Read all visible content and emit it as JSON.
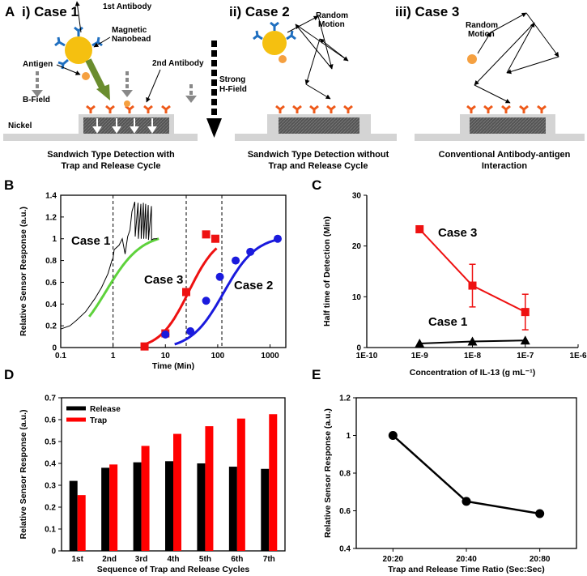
{
  "panel_a": {
    "letter": "A",
    "case1_title": "i) Case 1",
    "case2_title": "ii) Case 2",
    "case3_title": "iii) Case 3",
    "lbl_first_antibody": "1st Antibody",
    "lbl_magnetic": "Magnetic",
    "lbl_nanobead": "Nanobead",
    "lbl_antigen": "Antigen",
    "lbl_second_antibody": "2nd Antibody",
    "lbl_bfield": "B-Field",
    "lbl_nickel": "Nickel",
    "lbl_strong": "Strong",
    "lbl_hfield": "H-Field",
    "lbl_random": "Random",
    "lbl_motion": "Motion",
    "cap1_line1": "Sandwich Type Detection with",
    "cap1_line2": "Trap and Release Cycle",
    "cap2_line1": "Sandwich Type Detection without",
    "cap2_line2": "Trap and Release Cycle",
    "cap3_line1": "Conventional Antibody-antigen",
    "cap3_line2": "Interaction"
  },
  "chart_data": [
    {
      "panel": "B",
      "type": "scatter",
      "xscale": "log",
      "xlabel": "Time (Min)",
      "ylabel": "Relative Sensor Response (a.u.)",
      "xlim": [
        0.1,
        2000
      ],
      "ylim": [
        0,
        1.4
      ],
      "xticks": [
        "0.1",
        "1",
        "10",
        "100",
        "1000"
      ],
      "yticks": [
        "0",
        "0.2",
        "0.4",
        "0.6",
        "0.8",
        "1",
        "1.2",
        "1.4"
      ],
      "vlines": [
        1,
        25,
        120
      ],
      "annotations": [
        "Case 1",
        "Case 3",
        "Case 2"
      ],
      "series": [
        {
          "name": "Case 3 points",
          "color": "#ee1111",
          "marker": "square",
          "x": [
            4,
            10,
            25,
            60,
            90
          ],
          "y": [
            0.01,
            0.13,
            0.51,
            1.04,
            1.0
          ]
        },
        {
          "name": "Case 2 points",
          "color": "#1a1add",
          "marker": "circle",
          "x": [
            10,
            30,
            60,
            110,
            220,
            420,
            1400
          ],
          "y": [
            0.12,
            0.15,
            0.43,
            0.65,
            0.8,
            0.88,
            1.0
          ]
        }
      ]
    },
    {
      "panel": "C",
      "type": "line",
      "xscale": "log",
      "xlabel": "Concentration of IL-13 (g mL⁻¹)",
      "ylabel": "Half time of Detection (Min)",
      "xlim": [
        1e-10,
        1e-06
      ],
      "ylim": [
        0,
        30
      ],
      "xticks": [
        "1E-10",
        "1E-9",
        "1E-8",
        "1E-7",
        "1E-6"
      ],
      "yticks": [
        "0",
        "10",
        "20",
        "30"
      ],
      "series": [
        {
          "name": "Case 3",
          "color": "#ee1111",
          "marker": "square",
          "x": [
            1e-09,
            1e-08,
            1e-07
          ],
          "y": [
            23.3,
            12.2,
            7.0
          ],
          "err": [
            0.6,
            4.2,
            3.5
          ]
        },
        {
          "name": "Case 1",
          "color": "#000000",
          "marker": "triangle",
          "x": [
            1e-09,
            1e-08,
            1e-07
          ],
          "y": [
            0.8,
            1.2,
            1.4
          ]
        }
      ]
    },
    {
      "panel": "D",
      "type": "bar",
      "xlabel": "Sequence of Trap and Release Cycles",
      "ylabel": "Relative Sensor Response (a.u.)",
      "ylim": [
        0,
        0.7
      ],
      "yticks": [
        "0",
        "0.1",
        "0.2",
        "0.3",
        "0.4",
        "0.5",
        "0.6",
        "0.7"
      ],
      "categories": [
        "1st",
        "2nd",
        "3rd",
        "4th",
        "5th",
        "6th",
        "7th"
      ],
      "legend": "top-left",
      "series": [
        {
          "name": "Release",
          "color": "#000000",
          "values": [
            0.32,
            0.38,
            0.405,
            0.41,
            0.4,
            0.385,
            0.375
          ]
        },
        {
          "name": "Trap",
          "color": "#ff0000",
          "values": [
            0.255,
            0.395,
            0.48,
            0.535,
            0.57,
            0.605,
            0.625
          ]
        }
      ]
    },
    {
      "panel": "E",
      "type": "line",
      "xlabel": "Trap and Release Time Ratio (Sec:Sec)",
      "ylabel": "Relative Sensor Response (a.u.)",
      "ylim": [
        0.4,
        1.2
      ],
      "yticks": [
        "0.4",
        "0.6",
        "0.8",
        "1",
        "1.2"
      ],
      "categories": [
        "20:20",
        "20:40",
        "20:80"
      ],
      "series": [
        {
          "name": "Response",
          "color": "#000000",
          "values": [
            1.0,
            0.65,
            0.585
          ]
        }
      ]
    }
  ]
}
